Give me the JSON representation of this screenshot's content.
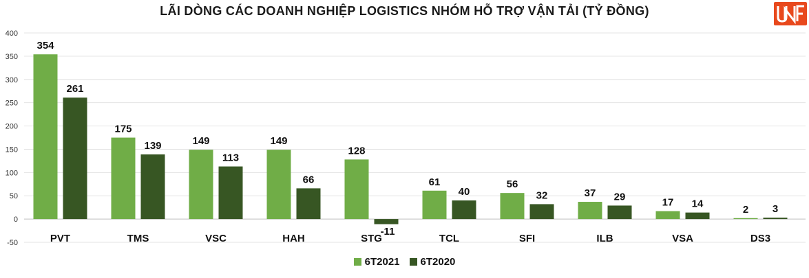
{
  "chart_data": {
    "type": "bar",
    "title": "LÃI DÒNG CÁC DOANH NGHIỆP LOGISTICS NHÓM HỖ TRỢ VẬN TẢI (TỶ ĐỒNG)",
    "categories": [
      "PVT",
      "TMS",
      "VSC",
      "HAH",
      "STG",
      "TCL",
      "SFI",
      "ILB",
      "VSA",
      "DS3"
    ],
    "series": [
      {
        "name": "6T2021",
        "color": "#70ad47",
        "values": [
          354,
          175,
          149,
          149,
          128,
          61,
          56,
          37,
          17,
          2
        ],
        "labels": [
          "354",
          "175",
          "149",
          "149",
          "128",
          "61",
          "56",
          "37",
          "17",
          "2"
        ]
      },
      {
        "name": "6T2020",
        "color": "#375623",
        "values": [
          261,
          139,
          113,
          66,
          -11,
          40,
          32,
          29,
          14,
          3
        ],
        "labels": [
          "261",
          "139",
          "113",
          "66",
          "-11",
          "40",
          "32",
          "29",
          "14",
          "3"
        ]
      }
    ],
    "ylim": [
      -50,
      400
    ],
    "yticks": [
      "-50",
      "0",
      "50",
      "100",
      "150",
      "200",
      "250",
      "300",
      "350",
      "400"
    ],
    "grid": true,
    "legend_position": "bottom"
  },
  "logo": {
    "text": "UNF",
    "color": "#e8491d"
  }
}
